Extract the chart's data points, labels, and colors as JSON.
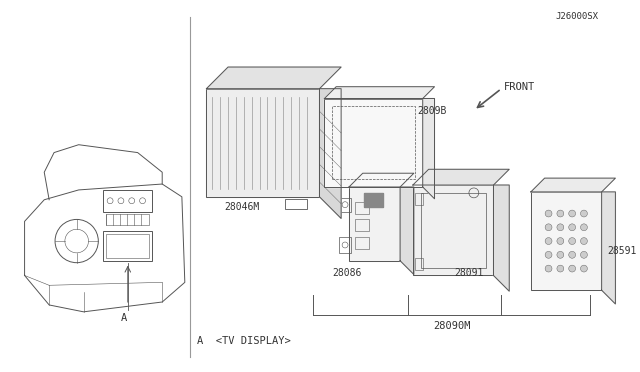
{
  "bg_color": "#ffffff",
  "line_color": "#555555",
  "text_color": "#333333",
  "label_28090M": "28090M",
  "label_28086": "28086",
  "label_28091": "28091",
  "label_28046M": "28046M",
  "label_2809B": "2809B",
  "label_28591": "28591",
  "label_front": "FRONT",
  "label_J26000SX": "J26000SX",
  "fig_width": 6.4,
  "fig_height": 3.72
}
